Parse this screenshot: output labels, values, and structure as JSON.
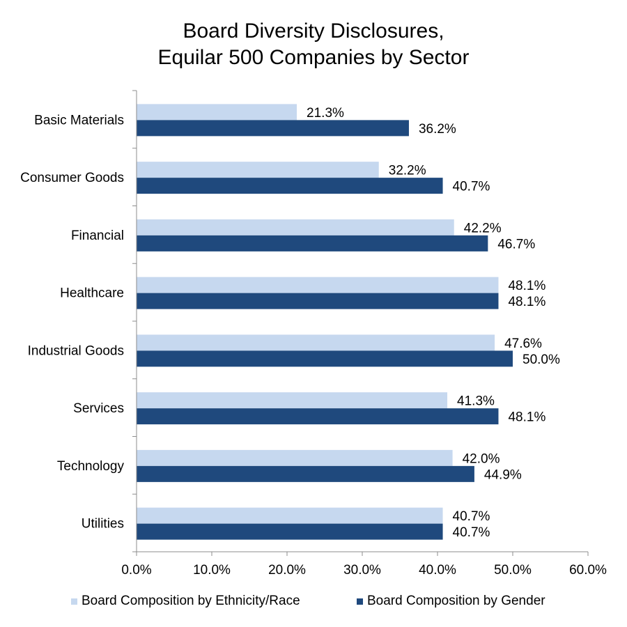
{
  "chart_data": {
    "type": "bar",
    "orientation": "horizontal",
    "title_lines": [
      "Board Diversity Disclosures,",
      "Equilar 500 Companies by Sector"
    ],
    "xlabel": "",
    "ylabel": "",
    "categories": [
      "Basic Materials",
      "Consumer Goods",
      "Financial",
      "Healthcare",
      "Industrial Goods",
      "Services",
      "Technology",
      "Utilities"
    ],
    "series": [
      {
        "name": "Board Composition by Ethnicity/Race",
        "color": "#c6d8ef",
        "values": [
          21.3,
          32.2,
          42.2,
          48.1,
          47.6,
          41.3,
          42.0,
          40.7
        ],
        "labels": [
          "21.3%",
          "32.2%",
          "42.2%",
          "48.1%",
          "47.6%",
          "41.3%",
          "42.0%",
          "40.7%"
        ]
      },
      {
        "name": "Board Composition by Gender",
        "color": "#1f497d",
        "values": [
          36.2,
          40.7,
          46.7,
          48.1,
          50.0,
          48.1,
          44.9,
          40.7
        ],
        "labels": [
          "36.2%",
          "40.7%",
          "46.7%",
          "48.1%",
          "50.0%",
          "48.1%",
          "44.9%",
          "40.7%"
        ]
      }
    ],
    "xlim": [
      0,
      60
    ],
    "xticks": [
      0,
      10,
      20,
      30,
      40,
      50,
      60
    ],
    "xtick_labels": [
      "0.0%",
      "10.0%",
      "20.0%",
      "30.0%",
      "40.0%",
      "50.0%",
      "60.0%"
    ],
    "grid": false,
    "legend_position": "bottom"
  }
}
